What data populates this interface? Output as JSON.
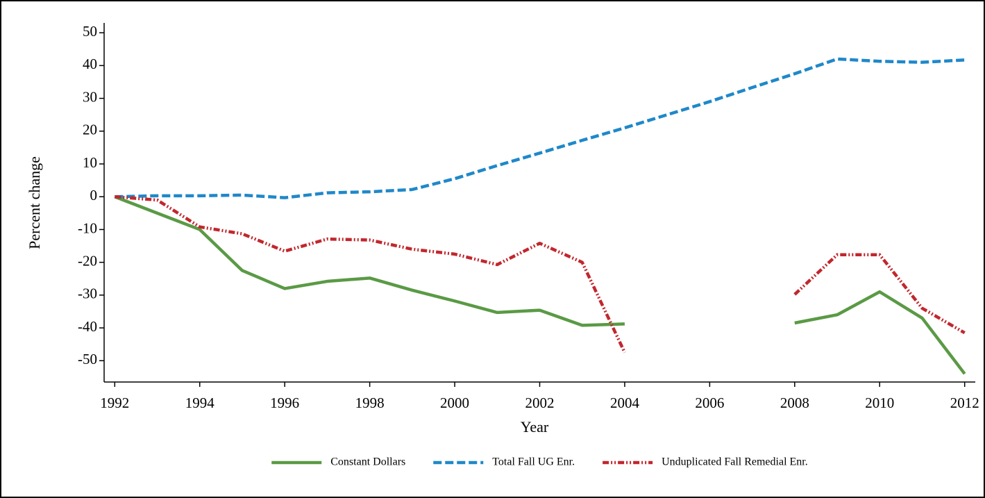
{
  "chart_data": {
    "type": "line",
    "x_label": "Year",
    "y_label": "Percent change",
    "x": [
      1992,
      1993,
      1994,
      1995,
      1996,
      1997,
      1998,
      1999,
      2000,
      2001,
      2002,
      2003,
      2004,
      2005,
      2006,
      2007,
      2008,
      2009,
      2010,
      2011,
      2012
    ],
    "series": [
      {
        "name": "Constant Dollars",
        "color": "#5a9a45",
        "linestyle": "solid",
        "values": [
          0,
          -5,
          -10,
          -22.5,
          -28,
          -25.8,
          -24.8,
          -28.5,
          -31.8,
          -35.3,
          -34.6,
          -39.2,
          -38.8,
          null,
          null,
          null,
          -38.5,
          -36,
          -29,
          -37,
          -54
        ]
      },
      {
        "name": "Total Fall UG Enr.",
        "color": "#1f88c9",
        "linestyle": "dashed",
        "values": [
          0,
          0.3,
          0.3,
          0.5,
          -0.3,
          1.2,
          1.5,
          2.2,
          5.5,
          9.5,
          13.3,
          17.2,
          21,
          25,
          29,
          33.3,
          37.5,
          42,
          41.3,
          41,
          41.7
        ]
      },
      {
        "name": "Unduplicated Fall Remedial Enr.",
        "color": "#c1272d",
        "linestyle": "dashdotdot",
        "values": [
          0,
          -1,
          -9.2,
          -11.3,
          -16.6,
          -12.9,
          -13.2,
          -16,
          -17.5,
          -20.7,
          -14.2,
          -20,
          -47.5,
          null,
          null,
          null,
          -29.8,
          -17.7,
          -17.7,
          -34,
          -41.5
        ]
      }
    ],
    "xlim": [
      1991.75,
      2012.25
    ],
    "ylim": [
      -56.5,
      53
    ],
    "xticks": [
      1992,
      1994,
      1996,
      1998,
      2000,
      2002,
      2004,
      2006,
      2008,
      2010,
      2012
    ],
    "yticks": [
      -50,
      -40,
      -30,
      -20,
      -10,
      0,
      10,
      20,
      30,
      40,
      50
    ],
    "grid": false,
    "legend": "bottom"
  }
}
